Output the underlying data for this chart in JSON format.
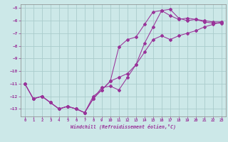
{
  "xlabel": "Windchill (Refroidissement éolien,°C)",
  "bg_color": "#cce8e8",
  "grid_color": "#aacccc",
  "line_color": "#993399",
  "xlim": [
    -0.5,
    23.5
  ],
  "ylim": [
    -13.6,
    -4.7
  ],
  "xticks": [
    0,
    1,
    2,
    3,
    4,
    5,
    6,
    7,
    8,
    9,
    10,
    11,
    12,
    13,
    14,
    15,
    16,
    17,
    18,
    19,
    20,
    21,
    22,
    23
  ],
  "yticks": [
    -13,
    -12,
    -11,
    -10,
    -9,
    -8,
    -7,
    -6,
    -5
  ],
  "series1_x": [
    0,
    1,
    2,
    3,
    4,
    5,
    6,
    7,
    8,
    9,
    10,
    11,
    12,
    13,
    14,
    15,
    16,
    17,
    18,
    19,
    20,
    21,
    22,
    23
  ],
  "series1_y": [
    -11.0,
    -12.2,
    -12.0,
    -12.5,
    -13.0,
    -12.8,
    -13.0,
    -13.3,
    -12.2,
    -11.3,
    -11.2,
    -11.5,
    -10.5,
    -9.5,
    -7.8,
    -6.5,
    -5.2,
    -5.1,
    -5.8,
    -6.0,
    -5.9,
    -6.1,
    -6.2,
    -6.2
  ],
  "series2_x": [
    0,
    1,
    2,
    3,
    4,
    5,
    6,
    7,
    8,
    9,
    10,
    11,
    12,
    13,
    14,
    15,
    16,
    17,
    18,
    19,
    20,
    21,
    22,
    23
  ],
  "series2_y": [
    -11.0,
    -12.2,
    -12.0,
    -12.5,
    -13.0,
    -12.8,
    -13.0,
    -13.3,
    -12.0,
    -11.5,
    -10.8,
    -8.1,
    -7.5,
    -7.3,
    -6.3,
    -5.3,
    -5.2,
    -5.6,
    -5.9,
    -5.8,
    -5.9,
    -6.0,
    -6.1,
    -6.1
  ],
  "series3_x": [
    0,
    1,
    2,
    3,
    4,
    5,
    6,
    7,
    8,
    9,
    10,
    11,
    12,
    13,
    14,
    15,
    16,
    17,
    18,
    19,
    20,
    21,
    22,
    23
  ],
  "series3_y": [
    -11.0,
    -12.2,
    -12.0,
    -12.5,
    -13.0,
    -12.8,
    -13.0,
    -13.3,
    -12.2,
    -11.5,
    -10.8,
    -10.5,
    -10.2,
    -9.5,
    -8.5,
    -7.5,
    -7.2,
    -7.5,
    -7.2,
    -7.0,
    -6.8,
    -6.5,
    -6.3,
    -6.1
  ]
}
